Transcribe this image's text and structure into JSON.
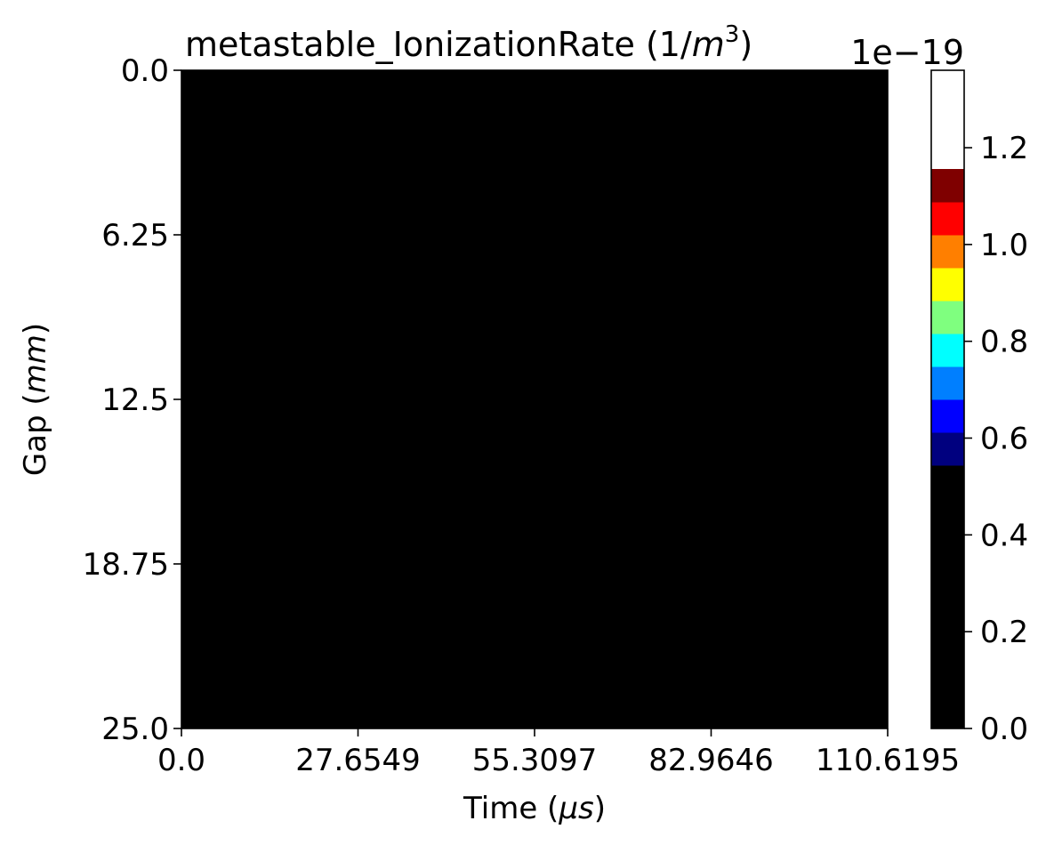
{
  "chart_data": {
    "type": "heatmap",
    "title": "metastable_IonizationRate (1/m³)",
    "title_parts": {
      "main": "metastable_IonizationRate (1/",
      "math_base": "m",
      "math_sup": "3",
      "close": ")"
    },
    "xlabel": "Time (μs)",
    "xlabel_parts": {
      "pre": "Time (",
      "math": "μs",
      "post": ")"
    },
    "ylabel": "Gap (mm)",
    "ylabel_parts": {
      "pre": "Gap (",
      "math": "mm",
      "post": ")"
    },
    "x_ticks": [
      0.0,
      27.6549,
      55.3097,
      82.9646,
      110.6195
    ],
    "x_tick_labels": [
      "0.0",
      "27.6549",
      "55.3097",
      "82.9646",
      "110.6195"
    ],
    "y_ticks": [
      0.0,
      6.25,
      12.5,
      18.75,
      25.0
    ],
    "y_tick_labels": [
      "0.0",
      "6.25",
      "12.5",
      "18.75",
      "25.0"
    ],
    "xlim": [
      0.0,
      110.6195
    ],
    "ylim": [
      25.0,
      0.0
    ],
    "y_inverted": true,
    "values": [
      [
        0.0
      ]
    ],
    "value_description": "entire field is 0 (black)",
    "colorbar": {
      "offset_text": "1e−19",
      "vmin": 0.0,
      "vmax": 1.36e-19,
      "ticks": [
        0.0,
        0.2,
        0.4,
        0.6,
        0.8,
        1.0,
        1.2
      ],
      "tick_labels": [
        "0.0",
        "0.2",
        "0.4",
        "0.6",
        "0.8",
        "1.0",
        "1.2"
      ],
      "levels": [
        {
          "from": 0.0,
          "to": 0.544,
          "color": "#000000"
        },
        {
          "from": 0.544,
          "to": 0.612,
          "color": "#00007f"
        },
        {
          "from": 0.612,
          "to": 0.68,
          "color": "#0000ff"
        },
        {
          "from": 0.68,
          "to": 0.748,
          "color": "#007fff"
        },
        {
          "from": 0.748,
          "to": 0.816,
          "color": "#00ffff"
        },
        {
          "from": 0.816,
          "to": 0.884,
          "color": "#7fff7f"
        },
        {
          "from": 0.884,
          "to": 0.952,
          "color": "#ffff00"
        },
        {
          "from": 0.952,
          "to": 1.02,
          "color": "#ff7f00"
        },
        {
          "from": 1.02,
          "to": 1.088,
          "color": "#ff0000"
        },
        {
          "from": 1.088,
          "to": 1.156,
          "color": "#7f0000"
        }
      ],
      "scale_max": 1.36
    },
    "grid": false,
    "colors": {
      "field": "#000000"
    }
  }
}
